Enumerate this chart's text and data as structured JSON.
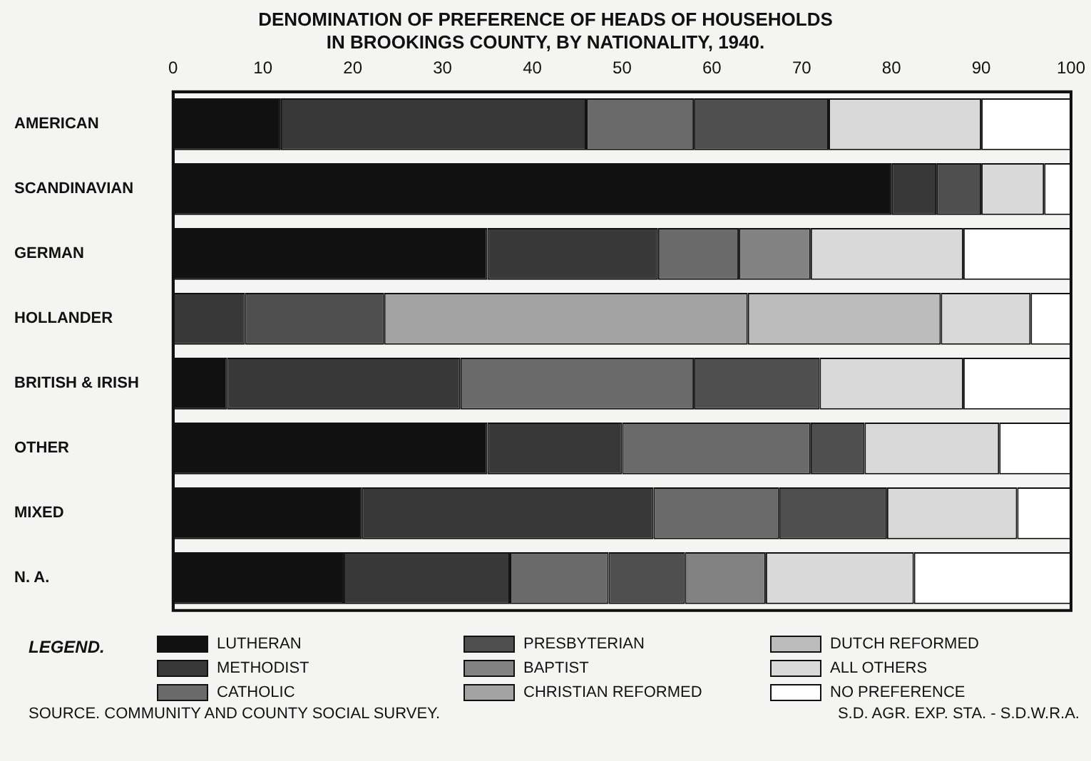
{
  "chart_data": {
    "type": "bar",
    "orientation": "horizontal",
    "stacked": true,
    "title": "DENOMINATION OF PREFERENCE OF HEADS OF HOUSEHOLDS\nIN BROOKINGS COUNTY, BY NATIONALITY, 1940.",
    "categories": [
      "AMERICAN",
      "SCANDINAVIAN",
      "GERMAN",
      "HOLLANDER",
      "BRITISH & IRISH",
      "OTHER",
      "MIXED",
      "N. A."
    ],
    "series": [
      {
        "name": "LUTHERAN",
        "color": "#111111",
        "values": [
          12,
          80,
          35,
          0,
          6,
          35,
          21,
          19
        ]
      },
      {
        "name": "METHODIST",
        "color": "#383838",
        "values": [
          34,
          5,
          19,
          8,
          26,
          15,
          32.5,
          18.5
        ]
      },
      {
        "name": "CATHOLIC",
        "color": "#6a6a6a",
        "values": [
          12,
          0,
          9,
          0,
          26,
          21,
          14,
          11
        ]
      },
      {
        "name": "PRESBYTERIAN",
        "color": "#4f4f4f",
        "values": [
          15,
          5,
          0,
          15.5,
          14,
          6,
          12,
          8.5
        ]
      },
      {
        "name": "BAPTIST",
        "color": "#828282",
        "values": [
          0,
          0,
          8,
          0,
          0,
          0,
          0,
          9
        ]
      },
      {
        "name": "CHRISTIAN REFORMED",
        "color": "#a3a3a3",
        "values": [
          0,
          0,
          0,
          40.5,
          0,
          0,
          0,
          0
        ]
      },
      {
        "name": "DUTCH REFORMED",
        "color": "#bcbcbc",
        "values": [
          0,
          0,
          0,
          21.5,
          0,
          0,
          0,
          0
        ]
      },
      {
        "name": "ALL OTHERS",
        "color": "#d9d9d9",
        "values": [
          17,
          7,
          17,
          10,
          16,
          15,
          14.5,
          16.5
        ]
      },
      {
        "name": "NO PREFERENCE",
        "color": "#ffffff",
        "values": [
          10,
          3,
          12,
          4.5,
          12,
          8,
          6,
          17.5
        ]
      }
    ],
    "xlim": [
      0,
      100
    ],
    "xticks": [
      0,
      10,
      20,
      30,
      40,
      50,
      60,
      70,
      80,
      90,
      100
    ],
    "grid": false,
    "legend": "bottom",
    "legend_title": "LEGEND.",
    "annotations": [
      "SOURCE. COMMUNITY AND COUNTY SOCIAL SURVEY.",
      "S.D. AGR. EXP. STA. - S.D.W.R.A."
    ]
  }
}
